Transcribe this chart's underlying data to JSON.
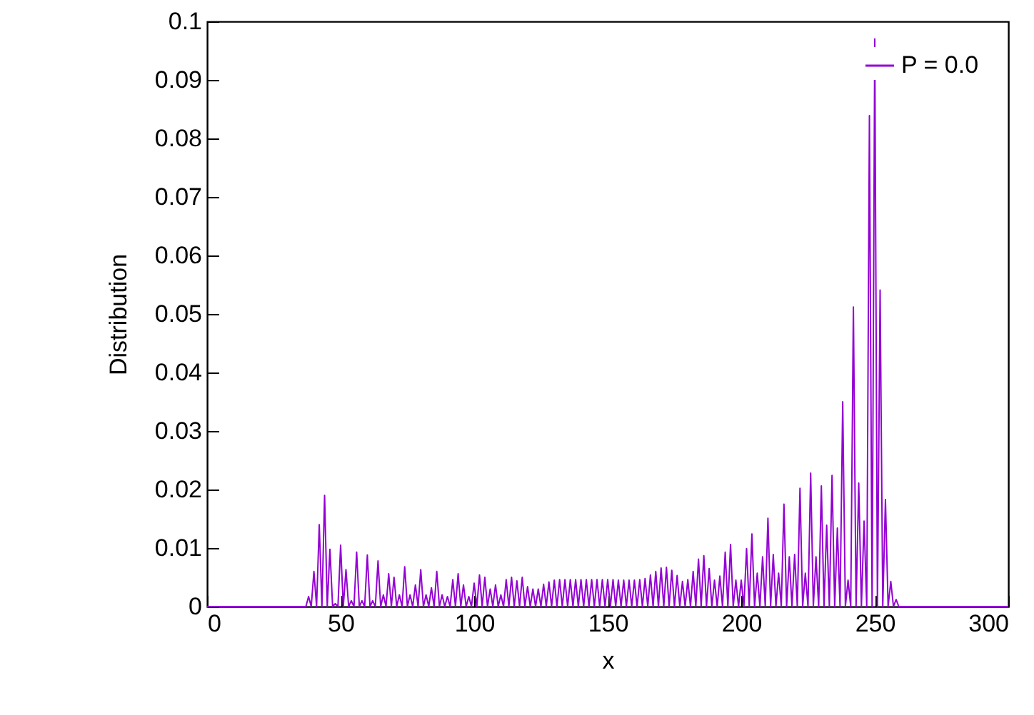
{
  "chart_data": {
    "type": "line",
    "xlabel": "x",
    "ylabel": "Distribution",
    "xlim": [
      0,
      300
    ],
    "xticks": [
      0,
      50,
      100,
      150,
      200,
      250,
      300
    ],
    "ylim": [
      0,
      0.1
    ],
    "yticks": [
      0,
      0.01,
      0.02,
      0.03,
      0.04,
      0.05,
      0.06,
      0.07,
      0.08,
      0.09,
      0.1
    ],
    "grid": false,
    "legend": "top right",
    "marker": "none",
    "line_style": "solid",
    "x": [
      0,
      37,
      38,
      39,
      40,
      41,
      42,
      43,
      44,
      45,
      46,
      47,
      48,
      49,
      50,
      51,
      52,
      53,
      54,
      55,
      56,
      57,
      58,
      59,
      60,
      61,
      62,
      63,
      64,
      65,
      66,
      67,
      68,
      69,
      70,
      71,
      72,
      73,
      74,
      75,
      76,
      77,
      78,
      79,
      80,
      81,
      82,
      83,
      84,
      85,
      86,
      87,
      88,
      89,
      90,
      91,
      92,
      93,
      94,
      95,
      96,
      97,
      98,
      99,
      100,
      101,
      102,
      103,
      104,
      105,
      106,
      107,
      108,
      109,
      110,
      111,
      112,
      113,
      114,
      115,
      116,
      117,
      118,
      119,
      120,
      121,
      122,
      123,
      124,
      125,
      126,
      127,
      128,
      129,
      130,
      131,
      132,
      133,
      134,
      135,
      136,
      137,
      138,
      139,
      140,
      141,
      142,
      143,
      144,
      145,
      146,
      147,
      148,
      149,
      150,
      151,
      152,
      153,
      154,
      155,
      156,
      157,
      158,
      159,
      160,
      161,
      162,
      163,
      164,
      165,
      166,
      167,
      168,
      169,
      170,
      171,
      172,
      173,
      174,
      175,
      176,
      177,
      178,
      179,
      180,
      181,
      182,
      183,
      184,
      185,
      186,
      187,
      188,
      189,
      190,
      191,
      192,
      193,
      194,
      195,
      196,
      197,
      198,
      199,
      200,
      201,
      202,
      203,
      204,
      205,
      206,
      207,
      208,
      209,
      210,
      211,
      212,
      213,
      214,
      215,
      216,
      217,
      218,
      219,
      220,
      221,
      222,
      223,
      224,
      225,
      226,
      227,
      228,
      229,
      230,
      231,
      232,
      233,
      234,
      235,
      236,
      237,
      238,
      239,
      240,
      241,
      242,
      243,
      244,
      245,
      246,
      247,
      248,
      249,
      250,
      251,
      252,
      253,
      254,
      255,
      256,
      257,
      258,
      259,
      300
    ],
    "series": [
      {
        "name": "P = 0.0",
        "color": "#9400d3",
        "values": [
          0,
          0,
          0.0017,
          0,
          0.006,
          0,
          0.014,
          0,
          0.019,
          0,
          0.0098,
          0,
          0.0005,
          0,
          0.0105,
          0,
          0.0063,
          0,
          0.001,
          0,
          0.0093,
          0,
          0.001,
          0,
          0.0088,
          0,
          0.001,
          0,
          0.0078,
          0,
          0.002,
          0,
          0.0056,
          0,
          0.005,
          0,
          0.002,
          0,
          0.0068,
          0,
          0.002,
          0,
          0.0037,
          0,
          0.0063,
          0,
          0.002,
          0,
          0.0032,
          0,
          0.006,
          0,
          0.002,
          0,
          0.0017,
          0,
          0.0046,
          0,
          0.0056,
          0,
          0.0037,
          0,
          0.0017,
          0,
          0.004,
          0,
          0.0054,
          0,
          0.005,
          0,
          0.003,
          0,
          0.0037,
          0,
          0.002,
          0,
          0.0046,
          0,
          0.005,
          0,
          0.0044,
          0,
          0.005,
          0,
          0.0034,
          0,
          0.003,
          0,
          0.003,
          0,
          0.0038,
          0,
          0.0042,
          0,
          0.0045,
          0,
          0.0046,
          0,
          0.0046,
          0,
          0.0046,
          0,
          0.0046,
          0,
          0.0046,
          0,
          0.0046,
          0,
          0.0046,
          0,
          0.0046,
          0,
          0.0046,
          0,
          0.0046,
          0,
          0.0046,
          0,
          0.0045,
          0,
          0.0045,
          0,
          0.0045,
          0,
          0.0045,
          0,
          0.0046,
          0,
          0.0048,
          0,
          0.0054,
          0,
          0.006,
          0,
          0.0066,
          0,
          0.0067,
          0,
          0.0062,
          0,
          0.0053,
          0,
          0.0043,
          0,
          0.0046,
          0,
          0.006,
          0,
          0.0081,
          0,
          0.0087,
          0,
          0.0065,
          0,
          0.0045,
          0,
          0.0052,
          0,
          0.0093,
          0,
          0.0106,
          0,
          0.0045,
          0,
          0.0045,
          0,
          0.0099,
          0,
          0.0124,
          0,
          0.0057,
          0,
          0.0085,
          0,
          0.0151,
          0,
          0.0089,
          0,
          0.0057,
          0,
          0.0175,
          0,
          0.0085,
          0,
          0.0089,
          0,
          0.0202,
          0,
          0.0057,
          0,
          0.0228,
          0,
          0.0085,
          0,
          0.0206,
          0,
          0.0139,
          0,
          0.0224,
          0,
          0.0134,
          0,
          0.035,
          0,
          0.0045,
          0,
          0.0512,
          0,
          0.0211,
          0,
          0.0146,
          0,
          0.0839,
          0,
          0.097,
          0,
          0.0541,
          0,
          0.0183,
          0,
          0.0043,
          0,
          0.0012,
          0,
          0
        ]
      }
    ]
  }
}
